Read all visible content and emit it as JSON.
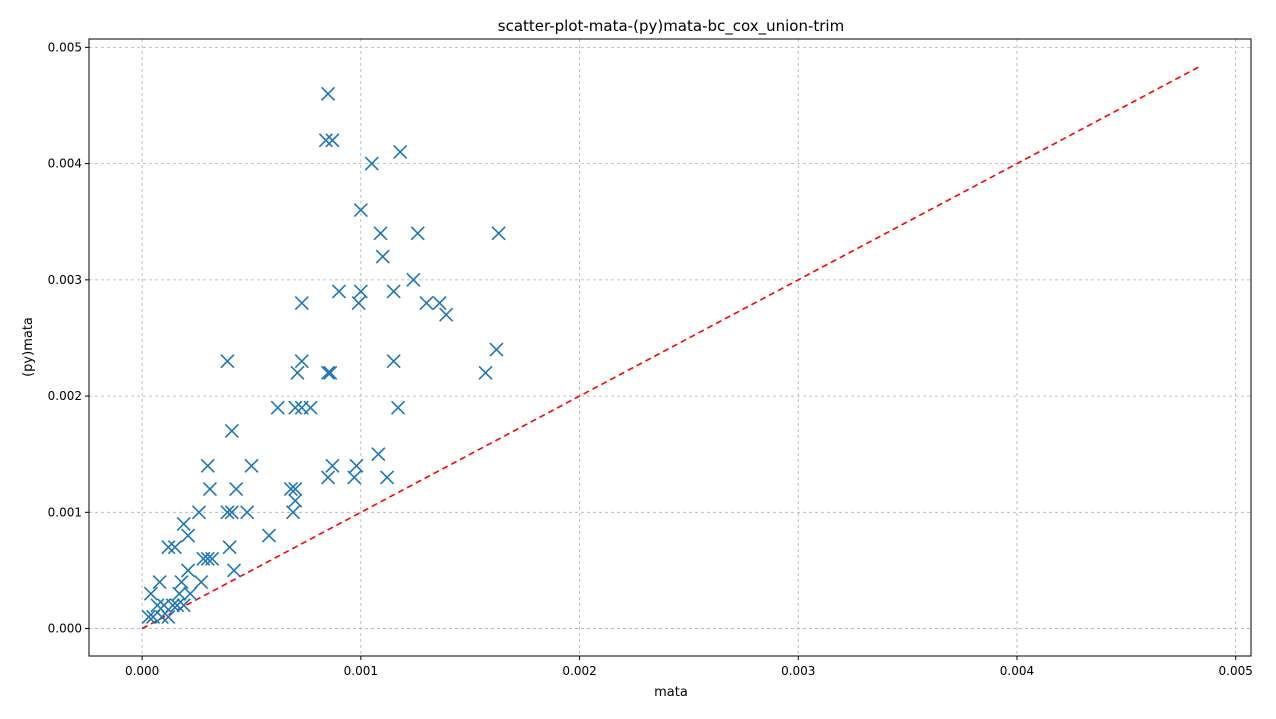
{
  "chart_data": {
    "type": "scatter",
    "title": "scatter-plot-mata-(py)mata-bc_cox_union-trim",
    "xlabel": "mata",
    "ylabel": "(py)mata",
    "xlim": [
      -0.000243,
      0.00507
    ],
    "ylim": [
      -0.000236,
      0.005072
    ],
    "xticks": [
      "0.000",
      "0.001",
      "0.002",
      "0.003",
      "0.004",
      "0.005"
    ],
    "yticks": [
      "0.000",
      "0.001",
      "0.002",
      "0.003",
      "0.004",
      "0.005"
    ],
    "grid": true,
    "marker": "x",
    "marker_color": "#1f77b4",
    "reference_line": {
      "from": [
        0,
        0
      ],
      "to": [
        0.00483,
        0.00483
      ],
      "color": "#ff0000",
      "style": "dashed"
    },
    "series": [
      {
        "points": [
          [
            0.00085,
            0.0046
          ],
          [
            0.00084,
            0.0042
          ],
          [
            0.00087,
            0.0042
          ],
          [
            0.00118,
            0.0041
          ],
          [
            0.00105,
            0.004
          ],
          [
            0.001,
            0.0036
          ],
          [
            0.00109,
            0.0034
          ],
          [
            0.00126,
            0.0034
          ],
          [
            0.00163,
            0.0034
          ],
          [
            0.0011,
            0.0032
          ],
          [
            0.00124,
            0.003
          ],
          [
            0.00073,
            0.0028
          ],
          [
            0.0009,
            0.0029
          ],
          [
            0.001,
            0.0029
          ],
          [
            0.00099,
            0.0028
          ],
          [
            0.00115,
            0.0029
          ],
          [
            0.0013,
            0.0028
          ],
          [
            0.00136,
            0.0028
          ],
          [
            0.00139,
            0.0027
          ],
          [
            0.00162,
            0.0024
          ],
          [
            0.00039,
            0.0023
          ],
          [
            0.00073,
            0.0023
          ],
          [
            0.00071,
            0.0022
          ],
          [
            0.00085,
            0.0022
          ],
          [
            0.00086,
            0.0022
          ],
          [
            0.00115,
            0.0023
          ],
          [
            0.00157,
            0.0022
          ],
          [
            0.00062,
            0.0019
          ],
          [
            0.0007,
            0.0019
          ],
          [
            0.00073,
            0.0019
          ],
          [
            0.00077,
            0.0019
          ],
          [
            0.00117,
            0.0019
          ],
          [
            0.00041,
            0.0017
          ],
          [
            0.00108,
            0.0015
          ],
          [
            0.0003,
            0.0014
          ],
          [
            0.0005,
            0.0014
          ],
          [
            0.00087,
            0.0014
          ],
          [
            0.00098,
            0.0014
          ],
          [
            0.00085,
            0.0013
          ],
          [
            0.00097,
            0.0013
          ],
          [
            0.00112,
            0.0013
          ],
          [
            0.00031,
            0.0012
          ],
          [
            0.00043,
            0.0012
          ],
          [
            0.00068,
            0.0012
          ],
          [
            0.0007,
            0.0012
          ],
          [
            0.0007,
            0.0011
          ],
          [
            0.00026,
            0.001
          ],
          [
            0.00039,
            0.001
          ],
          [
            0.00041,
            0.001
          ],
          [
            0.00048,
            0.001
          ],
          [
            0.00069,
            0.001
          ],
          [
            0.00019,
            0.0009
          ],
          [
            0.00021,
            0.0008
          ],
          [
            0.00058,
            0.0008
          ],
          [
            0.00012,
            0.0007
          ],
          [
            0.00015,
            0.0007
          ],
          [
            0.0004,
            0.0007
          ],
          [
            0.00028,
            0.0006
          ],
          [
            0.0003,
            0.0006
          ],
          [
            0.00032,
            0.0006
          ],
          [
            0.00021,
            0.0005
          ],
          [
            0.00042,
            0.0005
          ],
          [
            8e-05,
            0.0004
          ],
          [
            0.00018,
            0.0004
          ],
          [
            0.00027,
            0.0004
          ],
          [
            4e-05,
            0.0003
          ],
          [
            0.00017,
            0.0003
          ],
          [
            0.00022,
            0.0003
          ],
          [
            7e-05,
            0.0002
          ],
          [
            0.0001,
            0.0002
          ],
          [
            0.00014,
            0.0002
          ],
          [
            0.00016,
            0.0002
          ],
          [
            0.00019,
            0.0002
          ],
          [
            5e-05,
            0.0001
          ],
          [
            9e-05,
            0.0001
          ],
          [
            0.00012,
            0.0001
          ],
          [
            3e-05,
            0.0001
          ]
        ]
      }
    ]
  }
}
